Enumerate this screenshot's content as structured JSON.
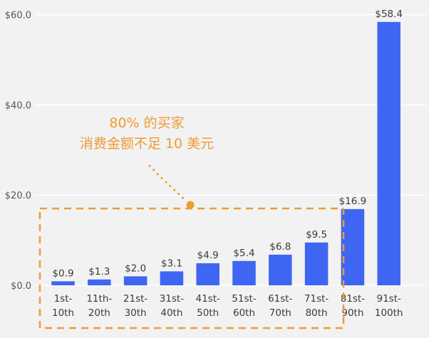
{
  "colors": {
    "background": "#f2f2f2",
    "bar": "#3e66f2",
    "grid": "#ffffff",
    "annotation": "#ee9b33"
  },
  "chart_data": {
    "type": "bar",
    "title": "",
    "xlabel": "",
    "ylabel": "",
    "ylim": [
      0,
      62
    ],
    "yticks": [
      0,
      20,
      40,
      60
    ],
    "ytick_labels": [
      "$0.0",
      "$20.0",
      "$40.0",
      "$60.0"
    ],
    "grid": true,
    "categories": [
      [
        "1st-",
        "10th"
      ],
      [
        "11th-",
        "20th"
      ],
      [
        "21st-",
        "30th"
      ],
      [
        "31st-",
        "40th"
      ],
      [
        "41st-",
        "50th"
      ],
      [
        "51st-",
        "60th"
      ],
      [
        "61st-",
        "70th"
      ],
      [
        "71st-",
        "80th"
      ],
      [
        "81st-",
        "90th"
      ],
      [
        "91st-",
        "100th"
      ]
    ],
    "values": [
      0.9,
      1.3,
      2.0,
      3.1,
      4.9,
      5.4,
      6.8,
      9.5,
      16.9,
      58.4
    ],
    "value_labels": [
      "$0.9",
      "$1.3",
      "$2.0",
      "$3.1",
      "$4.9",
      "$5.4",
      "$6.8",
      "$9.5",
      "$16.9",
      "$58.4"
    ],
    "annotation": {
      "lines": [
        "80% 的买家",
        "消费金额不足 10 美元"
      ],
      "highlighted_categories": [
        0,
        7
      ]
    }
  }
}
